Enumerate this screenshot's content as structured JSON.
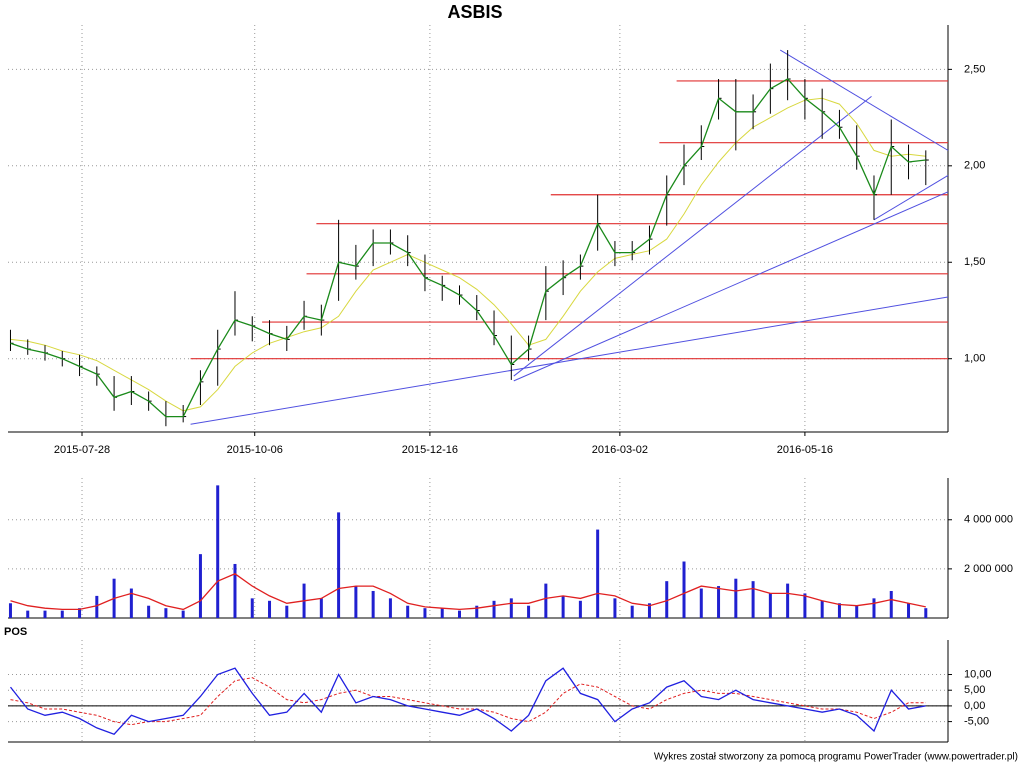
{
  "chart_data": [
    {
      "type": "ohlc",
      "title": "ASBIS",
      "x": [
        "2015-06-29",
        "2015-07-06",
        "2015-07-13",
        "2015-07-20",
        "2015-07-27",
        "2015-08-03",
        "2015-08-10",
        "2015-08-17",
        "2015-08-24",
        "2015-08-31",
        "2015-09-07",
        "2015-09-14",
        "2015-09-21",
        "2015-09-28",
        "2015-10-05",
        "2015-10-12",
        "2015-10-19",
        "2015-10-26",
        "2015-11-02",
        "2015-11-09",
        "2015-11-16",
        "2015-11-23",
        "2015-11-30",
        "2015-12-07",
        "2015-12-14",
        "2015-12-21",
        "2015-12-28",
        "2016-01-04",
        "2016-01-11",
        "2016-01-18",
        "2016-01-25",
        "2016-02-01",
        "2016-02-08",
        "2016-02-15",
        "2016-02-22",
        "2016-02-29",
        "2016-03-07",
        "2016-03-14",
        "2016-03-21",
        "2016-03-28",
        "2016-04-04",
        "2016-04-11",
        "2016-04-18",
        "2016-04-25",
        "2016-05-02",
        "2016-05-09",
        "2016-05-16",
        "2016-05-23",
        "2016-05-30",
        "2016-06-06",
        "2016-06-13",
        "2016-06-20",
        "2016-06-27",
        "2016-07-04"
      ],
      "high": [
        1.15,
        1.1,
        1.07,
        1.04,
        1.02,
        0.96,
        0.91,
        0.91,
        0.83,
        0.78,
        0.76,
        0.94,
        1.15,
        1.35,
        1.22,
        1.2,
        1.17,
        1.3,
        1.28,
        1.72,
        1.59,
        1.67,
        1.67,
        1.64,
        1.54,
        1.43,
        1.38,
        1.33,
        1.25,
        1.12,
        1.12,
        1.48,
        1.51,
        1.54,
        1.85,
        1.61,
        1.61,
        1.69,
        1.95,
        2.11,
        2.21,
        2.45,
        2.45,
        2.37,
        2.53,
        2.6,
        2.45,
        2.4,
        2.29,
        2.21,
        1.95,
        2.24,
        2.11,
        2.08
      ],
      "low": [
        1.04,
        1.02,
        0.99,
        0.96,
        0.91,
        0.86,
        0.73,
        0.76,
        0.73,
        0.65,
        0.67,
        0.76,
        0.86,
        1.12,
        1.09,
        1.07,
        1.04,
        1.15,
        1.12,
        1.3,
        1.41,
        1.48,
        1.54,
        1.48,
        1.35,
        1.3,
        1.28,
        1.2,
        1.07,
        0.89,
        0.99,
        1.2,
        1.33,
        1.41,
        1.56,
        1.48,
        1.51,
        1.54,
        1.69,
        1.9,
        2.03,
        2.24,
        2.08,
        2.19,
        2.27,
        2.34,
        2.24,
        2.14,
        2.14,
        1.98,
        1.72,
        1.85,
        1.93,
        1.9
      ],
      "close": [
        1.08,
        1.05,
        1.03,
        1.0,
        0.96,
        0.92,
        0.8,
        0.83,
        0.78,
        0.7,
        0.7,
        0.88,
        1.05,
        1.2,
        1.17,
        1.13,
        1.1,
        1.22,
        1.2,
        1.5,
        1.48,
        1.6,
        1.6,
        1.55,
        1.42,
        1.38,
        1.33,
        1.25,
        1.12,
        0.97,
        1.05,
        1.35,
        1.42,
        1.48,
        1.7,
        1.55,
        1.55,
        1.62,
        1.85,
        2.0,
        2.1,
        2.35,
        2.28,
        2.28,
        2.4,
        2.45,
        2.35,
        2.28,
        2.2,
        2.05,
        1.85,
        2.1,
        2.02,
        2.03
      ],
      "ma": [
        1.1,
        1.09,
        1.07,
        1.04,
        1.02,
        0.99,
        0.94,
        0.89,
        0.84,
        0.78,
        0.73,
        0.75,
        0.84,
        0.96,
        1.03,
        1.08,
        1.11,
        1.14,
        1.16,
        1.22,
        1.35,
        1.46,
        1.5,
        1.54,
        1.5,
        1.46,
        1.42,
        1.36,
        1.28,
        1.18,
        1.07,
        1.1,
        1.22,
        1.35,
        1.45,
        1.52,
        1.54,
        1.56,
        1.62,
        1.75,
        1.9,
        2.02,
        2.12,
        2.2,
        2.25,
        2.3,
        2.34,
        2.35,
        2.32,
        2.22,
        2.08,
        2.05,
        2.06,
        2.05
      ],
      "bar_color": "#000000",
      "close_color": "#1a8a1a",
      "ma_color": "#d8d840",
      "levels": [
        {
          "value": 1.0,
          "from": "2015-09-10"
        },
        {
          "value": 1.19,
          "from": "2015-10-09"
        },
        {
          "value": 1.44,
          "from": "2015-10-27"
        },
        {
          "value": 1.7,
          "from": "2015-10-31"
        },
        {
          "value": 1.85,
          "from": "2016-02-03"
        },
        {
          "value": 2.12,
          "from": "2016-03-18"
        },
        {
          "value": 2.44,
          "from": "2016-03-25"
        }
      ],
      "level_color": "#e03030",
      "trendlines": [
        {
          "x": [
            "2015-09-10",
            "2016-07-13"
          ],
          "values": [
            0.66,
            1.32
          ]
        },
        {
          "x": [
            "2016-01-19",
            "2016-07-13"
          ],
          "values": [
            0.885,
            1.865
          ]
        },
        {
          "x": [
            "2016-01-19",
            "2016-06-12"
          ],
          "values": [
            0.91,
            2.36
          ]
        },
        {
          "x": [
            "2016-05-06",
            "2016-07-13"
          ],
          "values": [
            2.6,
            2.08
          ]
        },
        {
          "x": [
            "2016-06-13",
            "2016-07-13"
          ],
          "values": [
            1.72,
            1.95
          ]
        }
      ],
      "trend_color": "#5050e0",
      "xlim": [
        "2015-06-28",
        "2016-07-13"
      ],
      "ylim": [
        0.62,
        2.73
      ],
      "xticks": [
        "2015-07-28",
        "2015-10-06",
        "2015-12-16",
        "2016-03-02",
        "2016-05-16"
      ],
      "yticks": [
        {
          "value": 1,
          "label": "1,00"
        },
        {
          "value": 1.5,
          "label": "1,50"
        },
        {
          "value": 2,
          "label": "2,00"
        },
        {
          "value": 2.5,
          "label": "2,50"
        }
      ],
      "grid": true
    },
    {
      "type": "bar",
      "values": [
        600000,
        300000,
        300000,
        300000,
        400000,
        900000,
        1600000,
        1200000,
        500000,
        400000,
        300000,
        2600000,
        5400000,
        2200000,
        800000,
        700000,
        500000,
        1400000,
        800000,
        4300000,
        1300000,
        1100000,
        800000,
        500000,
        400000,
        400000,
        300000,
        500000,
        700000,
        800000,
        500000,
        1400000,
        900000,
        700000,
        3600000,
        800000,
        500000,
        600000,
        1500000,
        2300000,
        1200000,
        1300000,
        1600000,
        1500000,
        1000000,
        1400000,
        1000000,
        700000,
        600000,
        500000,
        800000,
        1100000,
        600000,
        400000
      ],
      "ma": [
        700000,
        500000,
        400000,
        350000,
        350000,
        500000,
        800000,
        1000000,
        800000,
        500000,
        350000,
        700000,
        1500000,
        1800000,
        1300000,
        900000,
        600000,
        700000,
        800000,
        1200000,
        1300000,
        1300000,
        1000000,
        600000,
        450000,
        400000,
        350000,
        400000,
        500000,
        600000,
        600000,
        800000,
        900000,
        800000,
        1000000,
        900000,
        600000,
        500000,
        700000,
        1000000,
        1300000,
        1200000,
        1100000,
        1200000,
        1000000,
        1000000,
        900000,
        700000,
        550000,
        500000,
        600000,
        750000,
        600000,
        450000
      ],
      "color": "#2020d0",
      "ma_color": "#e02020",
      "ylim": [
        0,
        5700000
      ],
      "yticks": [
        {
          "value": 2000000,
          "label": "2 000 000"
        },
        {
          "value": 4000000,
          "label": "4 000 000"
        }
      ],
      "grid": true
    },
    {
      "type": "line",
      "title": "POS",
      "series": [
        {
          "color": "#2020e0",
          "values": [
            6,
            -1,
            -3,
            -2,
            -4,
            -7,
            -9,
            -3,
            -5,
            -4,
            -3,
            3,
            10,
            12,
            4,
            -3,
            -2,
            4,
            -2,
            10,
            1,
            3,
            2,
            0,
            -1,
            -2,
            -3,
            -1,
            -4,
            -8,
            -3,
            8,
            12,
            4,
            2,
            -5,
            -1,
            1,
            6,
            8,
            3,
            2,
            5,
            2,
            1,
            0,
            -1,
            -2,
            -1,
            -3,
            -8,
            5,
            -1,
            0
          ]
        },
        {
          "color": "#e02020",
          "values": [
            2,
            1,
            -1,
            -1,
            -2,
            -3,
            -5,
            -6,
            -5,
            -5,
            -4,
            -3,
            3,
            8,
            9,
            6,
            2,
            1,
            2,
            4,
            5,
            3,
            3,
            2,
            1,
            0,
            -1,
            -1,
            -2,
            -4,
            -5,
            -2,
            4,
            7,
            6,
            3,
            0,
            -1,
            2,
            4,
            5,
            4,
            4,
            3,
            2,
            1,
            0,
            -1,
            -1,
            -2,
            -4,
            -2,
            1,
            1
          ]
        }
      ],
      "ylim": [
        -11.5,
        21
      ],
      "yticks": [
        {
          "value": -5,
          "label": "-5,00"
        },
        {
          "value": 0,
          "label": "0,00"
        },
        {
          "value": 5,
          "label": "5,00"
        },
        {
          "value": 10,
          "label": "10,00"
        }
      ],
      "zero_line": true,
      "grid": true
    }
  ],
  "footer": "Wykres został stworzony za pomocą programu PowerTrader (www.powertrader.pl)"
}
